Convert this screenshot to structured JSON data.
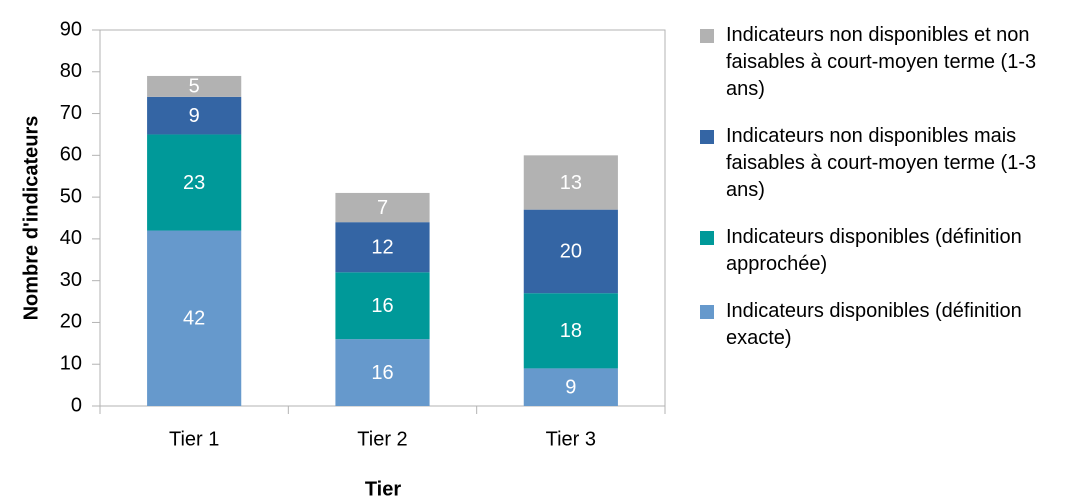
{
  "chart_data": {
    "type": "stacked_bar",
    "x_label": "Tier",
    "y_label": "Nombre d'indicateurs",
    "categories": [
      "Tier 1",
      "Tier 2",
      "Tier 3"
    ],
    "series": [
      {
        "name": "Indicateurs disponibles (définition exacte)",
        "color": "#6699cc",
        "values": [
          42,
          16,
          9
        ]
      },
      {
        "name": "Indicateurs disponibles (définition approchée)",
        "color": "#009999",
        "values": [
          23,
          16,
          18
        ]
      },
      {
        "name": "Indicateurs non disponibles mais faisables à court-moyen terme (1-3 ans)",
        "color": "#3465a4",
        "values": [
          9,
          12,
          20
        ]
      },
      {
        "name": "Indicateurs non disponibles et non faisables à court-moyen terme (1-3 ans)",
        "color": "#b2b2b2",
        "values": [
          5,
          7,
          13
        ]
      }
    ],
    "ylim": [
      0,
      90
    ],
    "yticks": [
      0,
      10,
      20,
      30,
      40,
      50,
      60,
      70,
      80,
      90
    ],
    "grid": false,
    "legend": "right"
  }
}
